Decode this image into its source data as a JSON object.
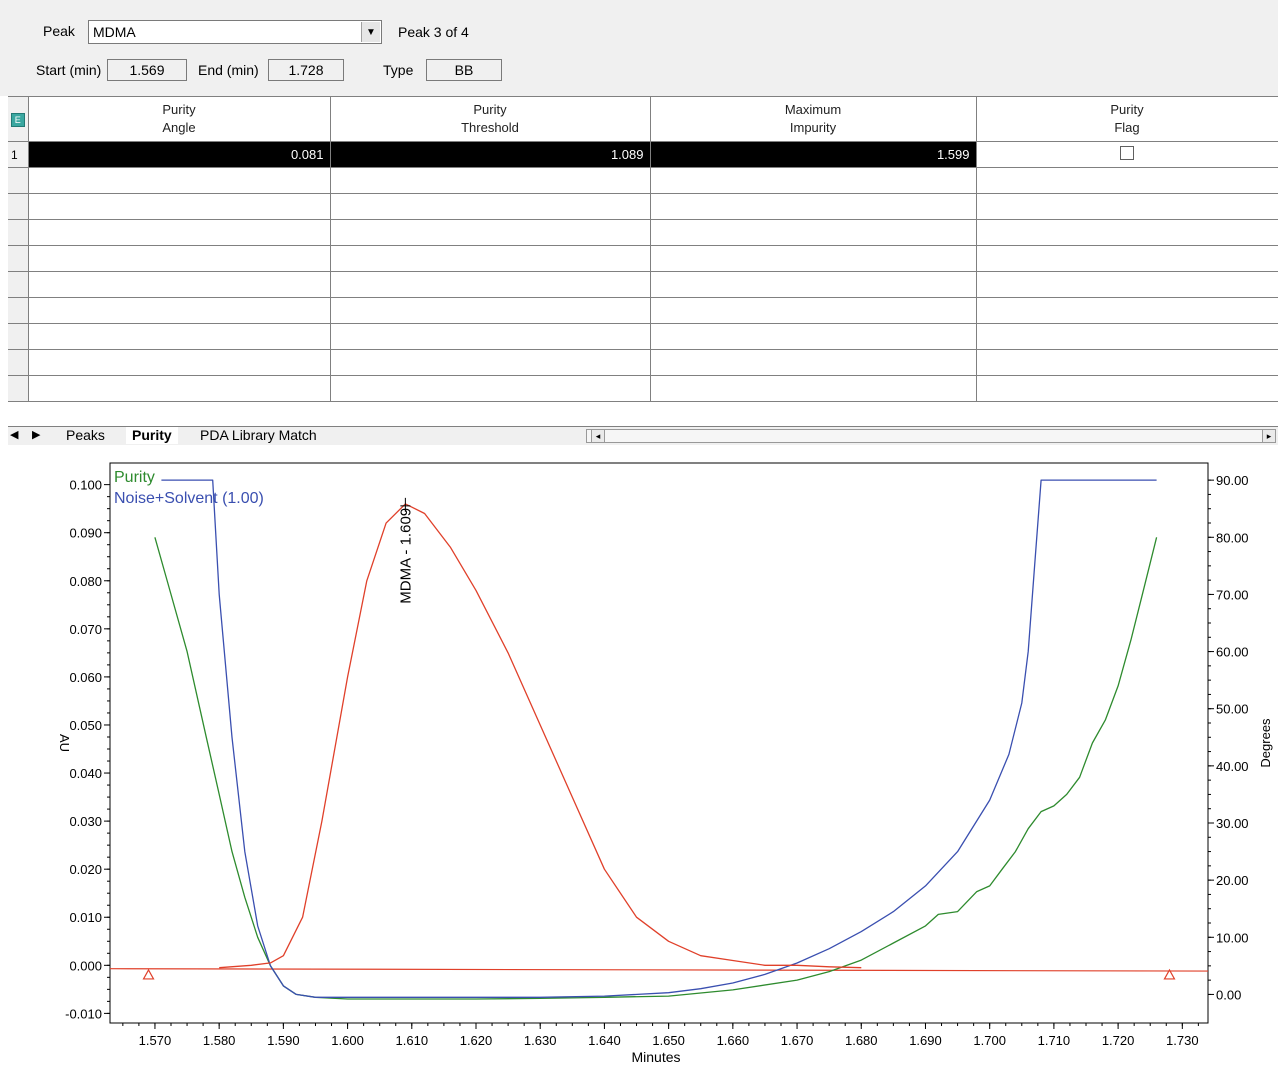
{
  "peak_select": {
    "label": "Peak",
    "value": "MDMA",
    "status": "Peak 3 of 4"
  },
  "times": {
    "start_label": "Start (min)",
    "start_value": "1.569",
    "end_label": "End (min)",
    "end_value": "1.728",
    "type_label": "Type",
    "type_value": "BB"
  },
  "table": {
    "columns": [
      {
        "line1": "Purity",
        "line2": "Angle"
      },
      {
        "line1": "Purity",
        "line2": "Threshold"
      },
      {
        "line1": "Maximum",
        "line2": "Impurity"
      },
      {
        "line1": "Purity",
        "line2": "Flag"
      }
    ],
    "corner_icon": "E",
    "rows": [
      {
        "index": "1",
        "angle": "0.081",
        "threshold": "1.089",
        "impurity": "1.599",
        "flag": false
      }
    ]
  },
  "tabs": [
    "Peaks",
    "Purity",
    "PDA Library Match"
  ],
  "active_tab": "Purity",
  "chart_data": {
    "type": "line",
    "xlabel": "Minutes",
    "ylabel_left": "AU",
    "ylabel_right": "Degrees",
    "xlim": [
      1.562,
      1.735
    ],
    "ylim_left": [
      -0.01,
      0.1
    ],
    "ylim_right": [
      0,
      90
    ],
    "x_ticks": [
      "1.570",
      "1.580",
      "1.590",
      "1.600",
      "1.610",
      "1.620",
      "1.630",
      "1.640",
      "1.650",
      "1.660",
      "1.670",
      "1.680",
      "1.690",
      "1.700",
      "1.710",
      "1.720",
      "1.730"
    ],
    "y_ticks_left": [
      "0.100",
      "0.090",
      "0.080",
      "0.070",
      "0.060",
      "0.050",
      "0.040",
      "0.030",
      "0.020",
      "0.010",
      "0.000",
      "-0.010"
    ],
    "y_ticks_right": [
      "90.00",
      "80.00",
      "70.00",
      "60.00",
      "50.00",
      "40.00",
      "30.00",
      "20.00",
      "10.00",
      "0.00"
    ],
    "legend": [
      "Purity",
      "Noise+Solvent (1.00)"
    ],
    "peak_label": "MDMA - 1.609",
    "colors": {
      "purity": "#2e8b2e",
      "noise": "#3a4fb0",
      "chromatogram": "#e0402a",
      "baseline": "#e0402a"
    },
    "series": [
      {
        "name": "Purity",
        "axis": "right",
        "x": [
          1.57,
          1.572,
          1.575,
          1.578,
          1.58,
          1.582,
          1.584,
          1.586,
          1.588,
          1.59,
          1.592,
          1.595,
          1.6,
          1.61,
          1.62,
          1.63,
          1.64,
          1.65,
          1.66,
          1.67,
          1.675,
          1.68,
          1.685,
          1.69,
          1.692,
          1.695,
          1.698,
          1.7,
          1.702,
          1.704,
          1.706,
          1.708,
          1.71,
          1.712,
          1.714,
          1.716,
          1.718,
          1.72,
          1.722,
          1.724,
          1.726
        ],
        "y": [
          80,
          72,
          60,
          45,
          35,
          25,
          17,
          10,
          5,
          1.5,
          0,
          -0.5,
          -0.8,
          -0.8,
          -0.8,
          -0.7,
          -0.5,
          -0.3,
          0.8,
          2.5,
          4,
          6,
          9,
          12,
          14,
          14.5,
          18,
          19,
          22,
          25,
          29,
          32,
          33,
          35,
          38,
          44,
          48,
          54,
          62,
          71,
          80
        ]
      },
      {
        "name": "Noise+Solvent (1.00)",
        "axis": "right",
        "x": [
          1.571,
          1.579,
          1.58,
          1.582,
          1.584,
          1.586,
          1.588,
          1.59,
          1.592,
          1.595,
          1.6,
          1.61,
          1.62,
          1.63,
          1.64,
          1.65,
          1.655,
          1.66,
          1.665,
          1.67,
          1.675,
          1.68,
          1.685,
          1.69,
          1.695,
          1.7,
          1.703,
          1.705,
          1.706,
          1.707,
          1.708,
          1.726
        ],
        "y": [
          90,
          90,
          70,
          45,
          25,
          12,
          5,
          1.5,
          0,
          -0.5,
          -0.5,
          -0.5,
          -0.5,
          -0.5,
          -0.3,
          0.3,
          1,
          2,
          3.5,
          5.5,
          8,
          11,
          14.5,
          19,
          25,
          34,
          42,
          51,
          60,
          75,
          90,
          90
        ]
      },
      {
        "name": "",
        "axis": "left",
        "x": [
          1.58,
          1.585,
          1.588,
          1.59,
          1.593,
          1.596,
          1.6,
          1.603,
          1.606,
          1.609,
          1.612,
          1.616,
          1.62,
          1.625,
          1.63,
          1.635,
          1.64,
          1.645,
          1.65,
          1.655,
          1.66,
          1.665,
          1.67,
          1.675,
          1.68
        ],
        "y": [
          -0.0005,
          0.0,
          0.0005,
          0.002,
          0.01,
          0.03,
          0.06,
          0.08,
          0.092,
          0.096,
          0.094,
          0.087,
          0.078,
          0.065,
          0.05,
          0.035,
          0.02,
          0.01,
          0.005,
          0.002,
          0.001,
          0.0,
          0.0,
          -0.0003,
          -0.0005
        ]
      }
    ],
    "baseline": {
      "x": [
        1.563,
        1.734
      ],
      "y": [
        -0.0007,
        -0.0012
      ]
    },
    "markers": [
      {
        "x": 1.569,
        "y": -0.002
      },
      {
        "x": 1.728,
        "y": -0.002
      }
    ]
  }
}
